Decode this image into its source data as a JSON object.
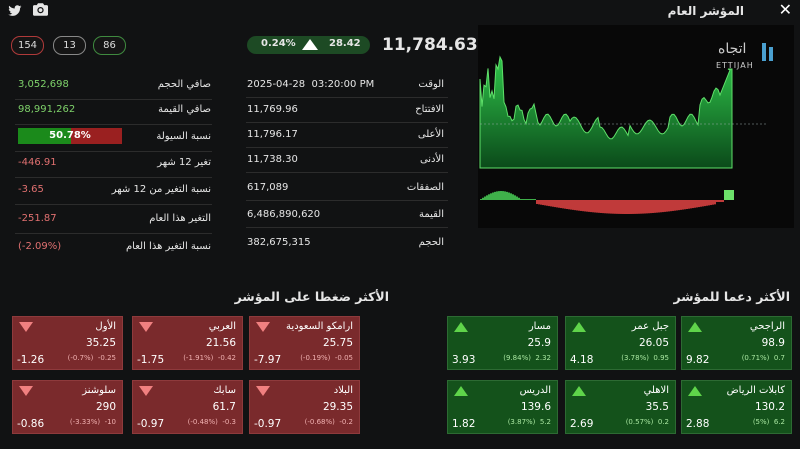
{
  "header": {
    "title": "المؤشر العام",
    "close_label": "✕"
  },
  "counts": {
    "declined": "154",
    "unchanged": "13",
    "advanced": "86"
  },
  "index": {
    "price": "11,784.63",
    "change": "28.42",
    "change_pct": "0.24%"
  },
  "stats_mid": [
    {
      "label": "الوقت",
      "value": "2025-04-28  03:20:00 PM"
    },
    {
      "label": "الافتتاح",
      "value": "11,769.96"
    },
    {
      "label": "الأعلى",
      "value": "11,796.17"
    },
    {
      "label": "الأدنى",
      "value": "11,738.30"
    },
    {
      "label": "الصفقات",
      "value": "617,089"
    },
    {
      "label": "القيمة",
      "value": "6,486,890,620"
    },
    {
      "label": "الحجم",
      "value": "382,675,315"
    }
  ],
  "stats_left": [
    {
      "label": "صافي الحجم",
      "value": "3,052,698",
      "tone": "grn"
    },
    {
      "label": "صافي القيمة",
      "value": "98,991,262",
      "tone": "grn"
    },
    {
      "label": "نسبة السيولة",
      "value": "50.78%",
      "tone": "bar",
      "fraction": 0.5078
    },
    {
      "label": "تغير 12 شهر",
      "value": "-446.91",
      "tone": "red"
    },
    {
      "label": "نسبة التغير من 12 شهر",
      "value": "-3.65",
      "tone": "red"
    },
    {
      "label": "التغير هذا العام",
      "value": "-251.87",
      "tone": "red"
    },
    {
      "label": "نسبة التغير هذا العام",
      "value": "(-2.09%)",
      "tone": "red"
    }
  ],
  "logo": {
    "arabic": "اتجاه",
    "latin": "ETTIJAH"
  },
  "support": {
    "title": "الأكثر دعما للمؤشر",
    "cards": [
      {
        "name": "الراجحي",
        "price": "98.9",
        "chg": "0.7",
        "pct": "(0.71%)",
        "pts": "9.82"
      },
      {
        "name": "جبل عمر",
        "price": "26.05",
        "chg": "0.95",
        "pct": "(3.78%)",
        "pts": "4.18"
      },
      {
        "name": "مسار",
        "price": "25.9",
        "chg": "2.32",
        "pct": "(9.84%)",
        "pts": "3.93"
      },
      {
        "name": "كابلات الرياض",
        "price": "130.2",
        "chg": "6.2",
        "pct": "(5%)",
        "pts": "2.88"
      },
      {
        "name": "الاهلي",
        "price": "35.5",
        "chg": "0.2",
        "pct": "(0.57%)",
        "pts": "2.69"
      },
      {
        "name": "الدريس",
        "price": "139.6",
        "chg": "5.2",
        "pct": "(3.87%)",
        "pts": "1.82"
      }
    ]
  },
  "pressure": {
    "title": "الأكثر ضغطا على المؤشر",
    "cards": [
      {
        "name": "ارامكو السعودية",
        "price": "25.75",
        "chg": "-0.05",
        "pct": "(-0.19%)",
        "pts": "-7.97"
      },
      {
        "name": "العربي",
        "price": "21.56",
        "chg": "-0.42",
        "pct": "(-1.91%)",
        "pts": "-1.75"
      },
      {
        "name": "الأول",
        "price": "35.25",
        "chg": "-0.25",
        "pct": "(-0.7%)",
        "pts": "-1.26"
      },
      {
        "name": "البلاد",
        "price": "29.35",
        "chg": "-0.2",
        "pct": "(-0.68%)",
        "pts": "-0.97"
      },
      {
        "name": "سابك",
        "price": "61.7",
        "chg": "-0.3",
        "pct": "(-0.48%)",
        "pts": "-0.97"
      },
      {
        "name": "سلوشنز",
        "price": "290",
        "chg": "-10",
        "pct": "(-3.33%)",
        "pts": "-0.86"
      }
    ]
  },
  "colors": {
    "up": "#14521b",
    "down": "#7a2a2c",
    "accent_green": "#5fd44a"
  }
}
